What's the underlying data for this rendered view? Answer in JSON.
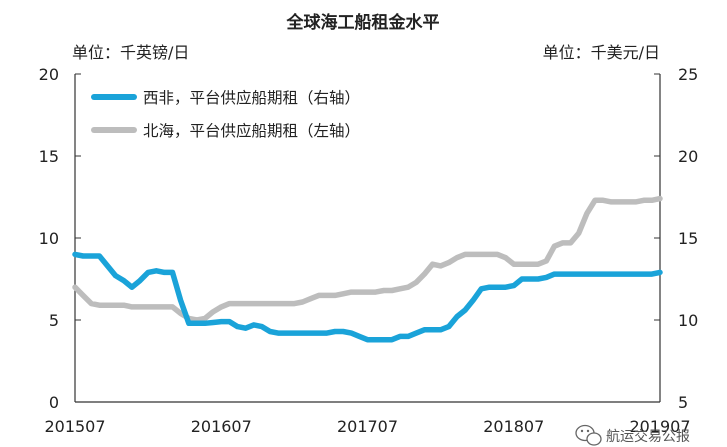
{
  "colors": {
    "west_africa": "#1aa3d9",
    "north_sea": "#bdbdbd",
    "axis": "#333333"
  },
  "watermark": {
    "icon": "wechat-icon",
    "text": "航运交易公报"
  },
  "chart_data": {
    "type": "line",
    "title": "全球海工船租金水平",
    "left_unit": "单位：千英镑/日",
    "right_unit": "单位：千美元/日",
    "x_ticks": [
      "201507",
      "201607",
      "201707",
      "201807",
      "201907"
    ],
    "y_left": {
      "range": [
        0,
        20
      ],
      "ticks": [
        "0",
        "5",
        "10",
        "15",
        "20"
      ]
    },
    "y_right": {
      "range": [
        5,
        25
      ],
      "ticks": [
        "5",
        "10",
        "15",
        "20",
        "25"
      ]
    },
    "legend": {
      "placement": "top-left",
      "entries": [
        "西非，平台供应船期租（右轴）",
        "北海，平台供应船期租（左轴）"
      ]
    },
    "series": [
      {
        "name": "西非，平台供应船期租（右轴）",
        "axis": "right",
        "color": "#1aa3d9",
        "points": [
          [
            0,
            14.0
          ],
          [
            1,
            13.9
          ],
          [
            2,
            13.9
          ],
          [
            3,
            13.9
          ],
          [
            4,
            13.3
          ],
          [
            5,
            12.7
          ],
          [
            6,
            12.4
          ],
          [
            7,
            12.0
          ],
          [
            8,
            12.4
          ],
          [
            9,
            12.9
          ],
          [
            10,
            13.0
          ],
          [
            11,
            12.9
          ],
          [
            12,
            12.9
          ],
          [
            13,
            11.2
          ],
          [
            14,
            9.8
          ],
          [
            15,
            9.8
          ],
          [
            16,
            9.8
          ],
          [
            17,
            9.85
          ],
          [
            18,
            9.9
          ],
          [
            19,
            9.9
          ],
          [
            20,
            9.6
          ],
          [
            21,
            9.5
          ],
          [
            22,
            9.7
          ],
          [
            23,
            9.6
          ],
          [
            24,
            9.3
          ],
          [
            25,
            9.2
          ],
          [
            26,
            9.2
          ],
          [
            27,
            9.2
          ],
          [
            28,
            9.2
          ],
          [
            29,
            9.2
          ],
          [
            30,
            9.2
          ],
          [
            31,
            9.2
          ],
          [
            32,
            9.3
          ],
          [
            33,
            9.3
          ],
          [
            34,
            9.2
          ],
          [
            35,
            9.0
          ],
          [
            36,
            8.8
          ],
          [
            37,
            8.8
          ],
          [
            38,
            8.8
          ],
          [
            39,
            8.8
          ],
          [
            40,
            9.0
          ],
          [
            41,
            9.0
          ],
          [
            42,
            9.2
          ],
          [
            43,
            9.4
          ],
          [
            44,
            9.4
          ],
          [
            45,
            9.4
          ],
          [
            46,
            9.6
          ],
          [
            47,
            10.2
          ],
          [
            48,
            10.6
          ],
          [
            49,
            11.2
          ],
          [
            50,
            11.9
          ],
          [
            51,
            12.0
          ],
          [
            52,
            12.0
          ],
          [
            53,
            12.0
          ],
          [
            54,
            12.1
          ],
          [
            55,
            12.5
          ],
          [
            56,
            12.5
          ],
          [
            57,
            12.5
          ],
          [
            58,
            12.6
          ],
          [
            59,
            12.8
          ],
          [
            60,
            12.8
          ],
          [
            61,
            12.8
          ],
          [
            62,
            12.8
          ],
          [
            63,
            12.8
          ],
          [
            64,
            12.8
          ],
          [
            65,
            12.8
          ],
          [
            66,
            12.8
          ],
          [
            67,
            12.8
          ],
          [
            68,
            12.8
          ],
          [
            69,
            12.8
          ],
          [
            70,
            12.8
          ],
          [
            71,
            12.8
          ],
          [
            72,
            12.9
          ]
        ]
      },
      {
        "name": "北海，平台供应船期租（左轴）",
        "axis": "left",
        "color": "#bdbdbd",
        "points": [
          [
            0,
            7.0
          ],
          [
            1,
            6.5
          ],
          [
            2,
            6.0
          ],
          [
            3,
            5.9
          ],
          [
            4,
            5.9
          ],
          [
            5,
            5.9
          ],
          [
            6,
            5.9
          ],
          [
            7,
            5.8
          ],
          [
            8,
            5.8
          ],
          [
            9,
            5.8
          ],
          [
            10,
            5.8
          ],
          [
            11,
            5.8
          ],
          [
            12,
            5.8
          ],
          [
            13,
            5.4
          ],
          [
            14,
            5.1
          ],
          [
            15,
            5.0
          ],
          [
            16,
            5.1
          ],
          [
            17,
            5.5
          ],
          [
            18,
            5.8
          ],
          [
            19,
            6.0
          ],
          [
            20,
            6.0
          ],
          [
            21,
            6.0
          ],
          [
            22,
            6.0
          ],
          [
            23,
            6.0
          ],
          [
            24,
            6.0
          ],
          [
            25,
            6.0
          ],
          [
            26,
            6.0
          ],
          [
            27,
            6.0
          ],
          [
            28,
            6.1
          ],
          [
            29,
            6.3
          ],
          [
            30,
            6.5
          ],
          [
            31,
            6.5
          ],
          [
            32,
            6.5
          ],
          [
            33,
            6.6
          ],
          [
            34,
            6.7
          ],
          [
            35,
            6.7
          ],
          [
            36,
            6.7
          ],
          [
            37,
            6.7
          ],
          [
            38,
            6.8
          ],
          [
            39,
            6.8
          ],
          [
            40,
            6.9
          ],
          [
            41,
            7.0
          ],
          [
            42,
            7.3
          ],
          [
            43,
            7.8
          ],
          [
            44,
            8.4
          ],
          [
            45,
            8.3
          ],
          [
            46,
            8.5
          ],
          [
            47,
            8.8
          ],
          [
            48,
            9.0
          ],
          [
            49,
            9.0
          ],
          [
            50,
            9.0
          ],
          [
            51,
            9.0
          ],
          [
            52,
            9.0
          ],
          [
            53,
            8.8
          ],
          [
            54,
            8.4
          ],
          [
            55,
            8.4
          ],
          [
            56,
            8.4
          ],
          [
            57,
            8.4
          ],
          [
            58,
            8.6
          ],
          [
            59,
            9.5
          ],
          [
            60,
            9.7
          ],
          [
            61,
            9.7
          ],
          [
            62,
            10.3
          ],
          [
            63,
            11.5
          ],
          [
            64,
            12.3
          ],
          [
            65,
            12.3
          ],
          [
            66,
            12.2
          ],
          [
            67,
            12.2
          ],
          [
            68,
            12.2
          ],
          [
            69,
            12.2
          ],
          [
            70,
            12.3
          ],
          [
            71,
            12.3
          ],
          [
            72,
            12.4
          ]
        ]
      }
    ]
  }
}
